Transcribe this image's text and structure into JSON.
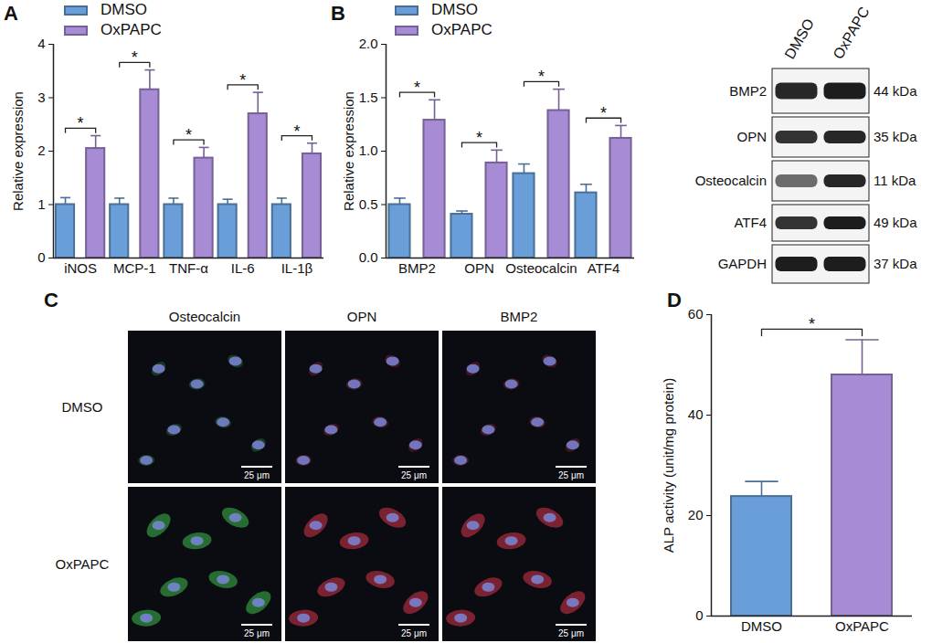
{
  "chart_data": [
    {
      "panel": "A",
      "type": "bar",
      "y_label": "Relative expression",
      "categories": [
        "iNOS",
        "MCP-1",
        "TNF-α",
        "IL-6",
        "IL-1β"
      ],
      "series": [
        {
          "name": "DMSO",
          "color": "#6a9ed8",
          "values": [
            1,
            1,
            1,
            1,
            1
          ],
          "errors": [
            0.13,
            0.12,
            0.12,
            0.1,
            0.12
          ]
        },
        {
          "name": "OxPAPC",
          "color": "#a78bd4",
          "values": [
            2.05,
            3.15,
            1.87,
            2.7,
            1.95
          ],
          "errors": [
            0.24,
            0.37,
            0.2,
            0.4,
            0.2
          ]
        }
      ],
      "significance": [
        "*",
        "*",
        "*",
        "*",
        "*"
      ],
      "ylim": [
        0,
        4
      ],
      "yticks": [
        0,
        1,
        2,
        3,
        4
      ],
      "legend": "top-left"
    },
    {
      "panel": "B",
      "type": "bar",
      "y_label": "Relative expression",
      "categories": [
        "BMP2",
        "OPN",
        "Osteocalcin",
        "ATF4"
      ],
      "series": [
        {
          "name": "DMSO",
          "color": "#6a9ed8",
          "values": [
            0.5,
            0.41,
            0.79,
            0.61
          ],
          "errors": [
            0.06,
            0.03,
            0.09,
            0.08
          ]
        },
        {
          "name": "OxPAPC",
          "color": "#a78bd4",
          "values": [
            1.29,
            0.89,
            1.38,
            1.12
          ],
          "errors": [
            0.19,
            0.12,
            0.2,
            0.12
          ]
        }
      ],
      "significance": [
        "*",
        "*",
        "*",
        "*"
      ],
      "ylim": [
        0,
        2
      ],
      "yticks": [
        {
          "value": 0,
          "label": "0.0"
        },
        {
          "value": 0.5,
          "label": "0.5"
        },
        {
          "value": 1,
          "label": "1.0"
        },
        {
          "value": 1.5,
          "label": "1.5"
        },
        {
          "value": 2,
          "label": "2.0"
        }
      ],
      "legend": "top-left"
    },
    {
      "panel": "D",
      "type": "bar",
      "y_label": "ALP activity (unit/mg protein)",
      "categories": [
        "DMSO",
        "OxPAPC"
      ],
      "values": [
        23.8,
        48
      ],
      "errors": [
        3,
        7
      ],
      "colors": [
        "#6a9ed8",
        "#a78bd4"
      ],
      "significance": [
        "*"
      ],
      "ylim": [
        0,
        60
      ],
      "yticks": [
        0,
        20,
        40,
        60
      ]
    }
  ],
  "western_blot": {
    "panel": "B",
    "lanes": [
      "DMSO",
      "OxPAPC"
    ],
    "rows": [
      {
        "protein": "BMP2",
        "size": "44 kDa"
      },
      {
        "protein": "OPN",
        "size": "35 kDa"
      },
      {
        "protein": "Osteocalcin",
        "size": "11 kDa"
      },
      {
        "protein": "ATF4",
        "size": "49 kDa"
      },
      {
        "protein": "GAPDH",
        "size": "37 kDa"
      }
    ]
  },
  "immunofluorescence": {
    "panel": "C",
    "columns": [
      {
        "stain": "Osteocalcin",
        "color": "#3fbf4a"
      },
      {
        "stain": "OPN",
        "color": "#d8364a"
      },
      {
        "stain": "BMP2",
        "color": "#d8364a"
      }
    ],
    "rows": [
      "DMSO",
      "OxPAPC"
    ],
    "scale_bar": "25 μm"
  }
}
